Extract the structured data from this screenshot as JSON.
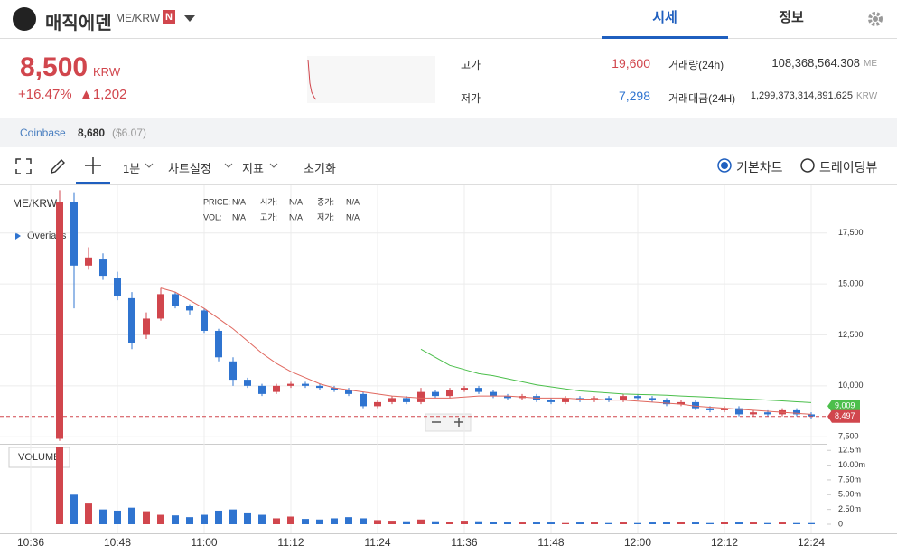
{
  "header": {
    "name": "매직에덴",
    "pair": "ME/KRW",
    "badge": "N",
    "tabs": [
      "시세",
      "정보"
    ]
  },
  "ticker": {
    "price": "8,500",
    "unit": "KRW",
    "change_rate": "+16.47%",
    "change": "▲1,202"
  },
  "stats": [
    {
      "label": "고가",
      "value": "19,600"
    },
    {
      "label": "저가",
      "value": "7,298"
    },
    {
      "label": "거래량(24h)",
      "value": "108,368,564.308",
      "unit": "ME"
    },
    {
      "label": "거래대금(24H)",
      "value": "1,299,373,314,891.625",
      "unit": "KRW"
    }
  ],
  "reference": {
    "exchange": "Coinbase",
    "price": "8,680",
    "usd": "($6.07)"
  },
  "toolbar": {
    "interval": "1분",
    "settings": "차트설정",
    "indicator": "지표",
    "reset": "초기화",
    "options": [
      "기본차트",
      "트레이딩뷰"
    ]
  },
  "chart_data": {
    "type": "candlestick",
    "symbol": "ME/KRW",
    "overlays": "Overlays",
    "volume_label": "VOLUME",
    "legend": [
      {
        "label": "PRICE:",
        "value": "N/A"
      },
      {
        "label": "시가:",
        "value": "N/A"
      },
      {
        "label": "종가:",
        "value": "N/A"
      },
      {
        "label": "VOL:",
        "value": "N/A"
      },
      {
        "label": "고가:",
        "value": "N/A"
      },
      {
        "label": "저가:",
        "value": "N/A"
      }
    ],
    "up_color": "#d1464d",
    "down_color": "#2f74d0",
    "categories": [
      "10:36",
      null,
      null,
      null,
      null,
      null,
      "10:48",
      null,
      null,
      null,
      null,
      null,
      "11:00",
      null,
      null,
      null,
      null,
      null,
      "11:12",
      null,
      null,
      null,
      null,
      null,
      "11:24",
      null,
      null,
      null,
      null,
      null,
      "11:36",
      null,
      null,
      null,
      null,
      null,
      "11:48",
      null,
      null,
      null,
      null,
      null,
      "12:00",
      null,
      null,
      null,
      null,
      null,
      "12:12",
      null,
      null,
      null,
      null,
      null,
      "12:24"
    ],
    "open": [
      null,
      null,
      7400,
      19000,
      15900,
      16200,
      15300,
      14300,
      12500,
      13300,
      14500,
      13900,
      13700,
      12700,
      11200,
      10300,
      10000,
      9700,
      10000,
      10100,
      10000,
      9900,
      9800,
      9600,
      9000,
      9200,
      9400,
      9200,
      9700,
      9500,
      9800,
      9900,
      9700,
      9500,
      9400,
      9500,
      9300,
      9200,
      9400,
      9300,
      9400,
      9300,
      9500,
      9400,
      9300,
      9100,
      9200,
      8900,
      8800,
      8900,
      8600,
      8700,
      8600,
      8800,
      8600
    ],
    "high": [
      null,
      null,
      19600,
      19500,
      16800,
      16500,
      15600,
      14600,
      13600,
      14800,
      14600,
      14000,
      13800,
      12800,
      11400,
      10400,
      10100,
      10100,
      10200,
      10200,
      10100,
      10000,
      9900,
      9700,
      9300,
      9500,
      9500,
      9900,
      9800,
      9900,
      10000,
      10000,
      9800,
      9600,
      9600,
      9600,
      9400,
      9500,
      9500,
      9500,
      9500,
      9600,
      9600,
      9500,
      9400,
      9300,
      9300,
      9000,
      9000,
      9000,
      8800,
      8800,
      8900,
      8900,
      8700
    ],
    "low": [
      null,
      null,
      7298,
      13800,
      15700,
      15200,
      14200,
      11800,
      12300,
      13200,
      13800,
      13500,
      12600,
      11200,
      10000,
      9900,
      9500,
      9600,
      9900,
      9900,
      9800,
      9700,
      9500,
      8900,
      8900,
      9100,
      9100,
      9100,
      9400,
      9400,
      9700,
      9600,
      9400,
      9300,
      9300,
      9200,
      9100,
      9100,
      9200,
      9200,
      9200,
      9200,
      9300,
      9200,
      9000,
      9000,
      8800,
      8700,
      8700,
      8500,
      8500,
      8500,
      8500,
      8500,
      8400
    ],
    "close": [
      null,
      null,
      19000,
      15900,
      16300,
      15400,
      14400,
      12100,
      13300,
      14500,
      13900,
      13700,
      12700,
      11400,
      10300,
      10000,
      9600,
      10000,
      10100,
      10000,
      9900,
      9800,
      9600,
      9000,
      9200,
      9400,
      9200,
      9700,
      9500,
      9800,
      9900,
      9700,
      9500,
      9400,
      9500,
      9300,
      9200,
      9400,
      9300,
      9400,
      9300,
      9500,
      9400,
      9300,
      9100,
      9200,
      8900,
      8800,
      8900,
      8600,
      8700,
      8600,
      8800,
      8600,
      8500
    ],
    "volume": [
      null,
      null,
      13000000,
      5000000,
      3500000,
      2500000,
      2300000,
      2800000,
      2200000,
      1600000,
      1500000,
      1200000,
      1600000,
      2300000,
      2500000,
      2000000,
      1600000,
      1000000,
      1300000,
      900000,
      800000,
      1000000,
      1200000,
      1000000,
      700000,
      600000,
      500000,
      800000,
      500000,
      400000,
      600000,
      500000,
      400000,
      300000,
      300000,
      300000,
      300000,
      200000,
      300000,
      300000,
      200000,
      300000,
      200000,
      300000,
      300000,
      400000,
      300000,
      200000,
      400000,
      300000,
      300000,
      200000,
      300000,
      200000,
      200000
    ],
    "lines": [
      {
        "color": "#e0685f",
        "values": [
          null,
          null,
          null,
          null,
          null,
          null,
          null,
          null,
          null,
          14800,
          14600,
          14200,
          13800,
          13300,
          12800,
          12200,
          11600,
          11100,
          10700,
          10400,
          10100,
          9900,
          9800,
          9700,
          9600,
          9500,
          9450,
          9400,
          9400,
          9400,
          9450,
          9500,
          9500,
          9500,
          9450,
          9400,
          9400,
          9400,
          9350,
          9350,
          9300,
          9300,
          9250,
          9200,
          9150,
          9100,
          9000,
          8950,
          8900,
          8850,
          8800,
          8750,
          8700,
          8650,
          8600
        ]
      },
      {
        "color": "#4cbf4c",
        "values": [
          null,
          null,
          null,
          null,
          null,
          null,
          null,
          null,
          null,
          null,
          null,
          null,
          null,
          null,
          null,
          null,
          null,
          null,
          null,
          null,
          null,
          null,
          null,
          null,
          null,
          null,
          null,
          11800,
          11400,
          11000,
          10800,
          10600,
          10500,
          10350,
          10200,
          10050,
          9950,
          9850,
          9750,
          9700,
          9650,
          9600,
          9580,
          9560,
          9540,
          9500,
          9470,
          9440,
          9400,
          9370,
          9340,
          9300,
          9260,
          9220,
          9180
        ]
      }
    ],
    "price_tags": [
      {
        "value": 9009,
        "label": "9,009",
        "color": "#4cbf4c"
      },
      {
        "value": 8497,
        "label": "8,497",
        "color": "#d1464d"
      }
    ],
    "ylim": [
      7200,
      19750
    ],
    "yticks": [
      {
        "value": 7500,
        "label": "7,500"
      },
      {
        "value": 10000,
        "label": "10,000"
      },
      {
        "value": 12500,
        "label": "12,500"
      },
      {
        "value": 15000,
        "label": "15,000"
      },
      {
        "value": 17500,
        "label": "17,500"
      }
    ],
    "vol_ylim": [
      0,
      13300000
    ],
    "vol_yticks": [
      0,
      {
        "value": 2500000,
        "label": "2.50m"
      },
      {
        "value": 5000000,
        "label": "5.00m"
      },
      {
        "value": 7500000,
        "label": "7.50m"
      },
      {
        "value": 10000000,
        "label": "10.00m"
      },
      {
        "value": 12500000,
        "label": "12.5m"
      }
    ]
  }
}
